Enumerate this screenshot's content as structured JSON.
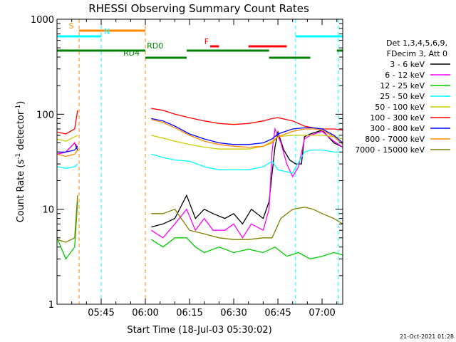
{
  "chart_data": {
    "type": "line",
    "title": "RHESSI Observing Summary Count Rates",
    "xlabel": "Start Time (18-Jul-03 05:30:02)",
    "ylabel_main": "Count Rate (s",
    "ylabel_sup": "-1",
    "ylabel_tail": " detector",
    "ylabel_sup2": "-1",
    "ylabel_end": ")",
    "x_range_min": [
      0,
      97
    ],
    "y_scale": "log",
    "ylim": [
      1,
      1000
    ],
    "x_ticks": [
      {
        "min": 15,
        "label": "05:45"
      },
      {
        "min": 30,
        "label": "06:00"
      },
      {
        "min": 45,
        "label": "06:15"
      },
      {
        "min": 60,
        "label": "06:30"
      },
      {
        "min": 75,
        "label": "06:45"
      },
      {
        "min": 90,
        "label": "07:00"
      }
    ],
    "y_ticks": [
      {
        "value": 1,
        "label": "1"
      },
      {
        "value": 10,
        "label": "10"
      },
      {
        "value": 100,
        "label": "100"
      },
      {
        "value": 1000,
        "label": "1000"
      }
    ],
    "legend_header": [
      "Det 1,3,4,5,6,9,",
      "FDecim 3, Att 0"
    ],
    "series": [
      {
        "name": "3 - 6 keV",
        "color": "#000000",
        "segments": [
          [
            [
              0,
              38
            ],
            [
              3,
              40
            ],
            [
              6,
              50
            ],
            [
              7,
              42
            ]
          ],
          [
            [
              32,
              6.5
            ],
            [
              36,
              7
            ],
            [
              40,
              8
            ],
            [
              44,
              14
            ],
            [
              47,
              8
            ],
            [
              50,
              10
            ],
            [
              53,
              9
            ],
            [
              57,
              8
            ],
            [
              60,
              9
            ],
            [
              63,
              7
            ],
            [
              66,
              10
            ],
            [
              70,
              8
            ],
            [
              72,
              12
            ],
            [
              74,
              45
            ],
            [
              75,
              65
            ],
            [
              77,
              42
            ],
            [
              79,
              33
            ],
            [
              81,
              30
            ],
            [
              83,
              30
            ],
            [
              84,
              58
            ],
            [
              86,
              62
            ],
            [
              90,
              68
            ],
            [
              94,
              50
            ],
            [
              97,
              45
            ]
          ]
        ]
      },
      {
        "name": "6 - 12 keV",
        "color": "#ff00ff",
        "segments": [
          [
            [
              0,
              38
            ],
            [
              3,
              40
            ],
            [
              6,
              50
            ],
            [
              7,
              45
            ]
          ],
          [
            [
              32,
              6
            ],
            [
              36,
              5
            ],
            [
              40,
              7
            ],
            [
              44,
              10
            ],
            [
              47,
              6
            ],
            [
              50,
              8
            ],
            [
              53,
              6
            ],
            [
              57,
              6
            ],
            [
              60,
              7
            ],
            [
              63,
              5
            ],
            [
              66,
              7
            ],
            [
              70,
              6
            ],
            [
              72,
              10
            ],
            [
              73,
              40
            ],
            [
              74,
              70
            ],
            [
              76,
              50
            ],
            [
              78,
              30
            ],
            [
              80,
              22
            ],
            [
              82,
              28
            ],
            [
              84,
              55
            ],
            [
              86,
              60
            ],
            [
              90,
              66
            ],
            [
              94,
              52
            ],
            [
              97,
              45
            ]
          ]
        ]
      },
      {
        "name": "12 - 25 keV",
        "color": "#00cc00",
        "segments": [
          [
            [
              0,
              5
            ],
            [
              3,
              3
            ],
            [
              6,
              4
            ],
            [
              7,
              12
            ]
          ],
          [
            [
              32,
              4.8
            ],
            [
              36,
              4
            ],
            [
              40,
              5
            ],
            [
              44,
              5
            ],
            [
              47,
              4
            ],
            [
              50,
              3.5
            ],
            [
              55,
              4
            ],
            [
              60,
              3.5
            ],
            [
              65,
              3.8
            ],
            [
              70,
              3.5
            ],
            [
              74,
              4
            ],
            [
              78,
              3.2
            ],
            [
              82,
              3.5
            ],
            [
              86,
              3
            ],
            [
              90,
              3.2
            ],
            [
              94,
              3.5
            ],
            [
              97,
              3.3
            ]
          ]
        ]
      },
      {
        "name": "25 - 50 keV",
        "color": "#00ffff",
        "segments": [
          [
            [
              0,
              28
            ],
            [
              3,
              27
            ],
            [
              6,
              28
            ],
            [
              7,
              30
            ]
          ],
          [
            [
              32,
              38
            ],
            [
              36,
              35
            ],
            [
              40,
              33
            ],
            [
              45,
              32
            ],
            [
              50,
              28
            ],
            [
              55,
              26
            ],
            [
              60,
              26
            ],
            [
              65,
              26
            ],
            [
              70,
              28
            ],
            [
              73,
              32
            ],
            [
              75,
              26
            ],
            [
              80,
              24
            ],
            [
              84,
              40
            ],
            [
              86,
              42
            ],
            [
              90,
              42
            ],
            [
              94,
              40
            ],
            [
              97,
              40
            ]
          ]
        ]
      },
      {
        "name": "50 - 100 keV",
        "color": "#cccc00",
        "segments": [
          [
            [
              0,
              55
            ],
            [
              3,
              52
            ],
            [
              6,
              58
            ],
            [
              7,
              60
            ]
          ],
          [
            [
              32,
              60
            ],
            [
              36,
              56
            ],
            [
              40,
              52
            ],
            [
              45,
              48
            ],
            [
              50,
              45
            ],
            [
              55,
              43
            ],
            [
              60,
              43
            ],
            [
              65,
              43
            ],
            [
              70,
              46
            ],
            [
              73,
              52
            ],
            [
              75,
              58
            ],
            [
              80,
              60
            ],
            [
              84,
              60
            ],
            [
              87,
              60
            ],
            [
              90,
              60
            ],
            [
              94,
              58
            ],
            [
              97,
              55
            ]
          ]
        ]
      },
      {
        "name": "100 - 300 keV",
        "color": "#ff0000",
        "segments": [
          [
            [
              0,
              65
            ],
            [
              3,
              62
            ],
            [
              6,
              70
            ],
            [
              7,
              110
            ]
          ],
          [
            [
              32,
              115
            ],
            [
              36,
              110
            ],
            [
              40,
              100
            ],
            [
              45,
              92
            ],
            [
              50,
              85
            ],
            [
              55,
              80
            ],
            [
              60,
              78
            ],
            [
              65,
              80
            ],
            [
              70,
              85
            ],
            [
              73,
              90
            ],
            [
              75,
              92
            ],
            [
              80,
              85
            ],
            [
              84,
              75
            ],
            [
              87,
              72
            ],
            [
              90,
              70
            ],
            [
              94,
              70
            ],
            [
              97,
              68
            ]
          ]
        ]
      },
      {
        "name": "300 - 800 keV",
        "color": "#0000ff",
        "segments": [
          [
            [
              0,
              40
            ],
            [
              3,
              40
            ],
            [
              6,
              42
            ],
            [
              7,
              46
            ]
          ],
          [
            [
              32,
              90
            ],
            [
              36,
              85
            ],
            [
              40,
              75
            ],
            [
              45,
              62
            ],
            [
              50,
              55
            ],
            [
              55,
              50
            ],
            [
              60,
              48
            ],
            [
              65,
              48
            ],
            [
              70,
              50
            ],
            [
              73,
              55
            ],
            [
              75,
              62
            ],
            [
              80,
              70
            ],
            [
              84,
              72
            ],
            [
              87,
              72
            ],
            [
              90,
              70
            ],
            [
              94,
              60
            ],
            [
              97,
              50
            ]
          ]
        ]
      },
      {
        "name": "800 - 7000 keV",
        "color": "#ff8800",
        "segments": [
          [
            [
              0,
              38
            ],
            [
              3,
              36
            ],
            [
              6,
              38
            ],
            [
              7,
              42
            ]
          ],
          [
            [
              32,
              88
            ],
            [
              36,
              82
            ],
            [
              40,
              72
            ],
            [
              45,
              60
            ],
            [
              50,
              52
            ],
            [
              55,
              48
            ],
            [
              60,
              46
            ],
            [
              65,
              45
            ],
            [
              70,
              46
            ],
            [
              73,
              50
            ],
            [
              75,
              58
            ],
            [
              80,
              66
            ],
            [
              84,
              70
            ],
            [
              87,
              70
            ],
            [
              90,
              68
            ],
            [
              94,
              58
            ],
            [
              97,
              48
            ]
          ]
        ]
      },
      {
        "name": "7000 - 15000 keV",
        "color": "#808000",
        "segments": [
          [
            [
              0,
              4.8
            ],
            [
              3,
              4.5
            ],
            [
              6,
              5
            ],
            [
              7,
              14
            ]
          ],
          [
            [
              32,
              9
            ],
            [
              36,
              9
            ],
            [
              40,
              10
            ],
            [
              45,
              6
            ],
            [
              50,
              5.5
            ],
            [
              55,
              5
            ],
            [
              60,
              4.8
            ],
            [
              65,
              4.8
            ],
            [
              70,
              5
            ],
            [
              73,
              5
            ],
            [
              76,
              8
            ],
            [
              80,
              10
            ],
            [
              84,
              10.5
            ],
            [
              87,
              10
            ],
            [
              90,
              9
            ],
            [
              94,
              8
            ],
            [
              97,
              7
            ]
          ]
        ]
      }
    ],
    "markers": {
      "saa_vertical_min": [
        [
          0,
          "#00ffff"
        ],
        [
          7.5,
          "#ff8800"
        ],
        [
          15,
          "#00ffff"
        ],
        [
          30,
          "#ff8800"
        ],
        [
          81,
          "#00ffff"
        ],
        [
          95.5,
          "#00ffff"
        ]
      ],
      "flags": [
        {
          "label": "S",
          "color": "#ff8800",
          "y_frac": 0.04,
          "spans": [
            [
              7.5,
              15
            ],
            [
              15,
              30
            ]
          ],
          "label_at_min": 4
        },
        {
          "label": "N",
          "color": "#00ffff",
          "y_frac": 0.06,
          "spans": [
            [
              0,
              15
            ],
            [
              81,
              97
            ]
          ],
          "label_at_min": 16
        },
        {
          "label": "F",
          "color": "#ff0000",
          "y_frac": 0.095,
          "spans": [
            [
              52,
              55
            ],
            [
              65,
              78
            ]
          ],
          "label_at_min": 50
        },
        {
          "label": "RD0",
          "color": "#008000",
          "y_frac": 0.11,
          "spans": [
            [
              0,
              30
            ],
            [
              44,
              72
            ],
            [
              95,
              97
            ]
          ],
          "label_at_min": 30.5
        },
        {
          "label": "RD4",
          "color": "#008000",
          "y_frac": 0.135,
          "spans": [
            [
              30,
              44
            ],
            [
              72,
              86
            ]
          ],
          "label_at_min": 22.5
        }
      ]
    }
  },
  "footer_timestamp": "21-Oct-2021 01:28"
}
